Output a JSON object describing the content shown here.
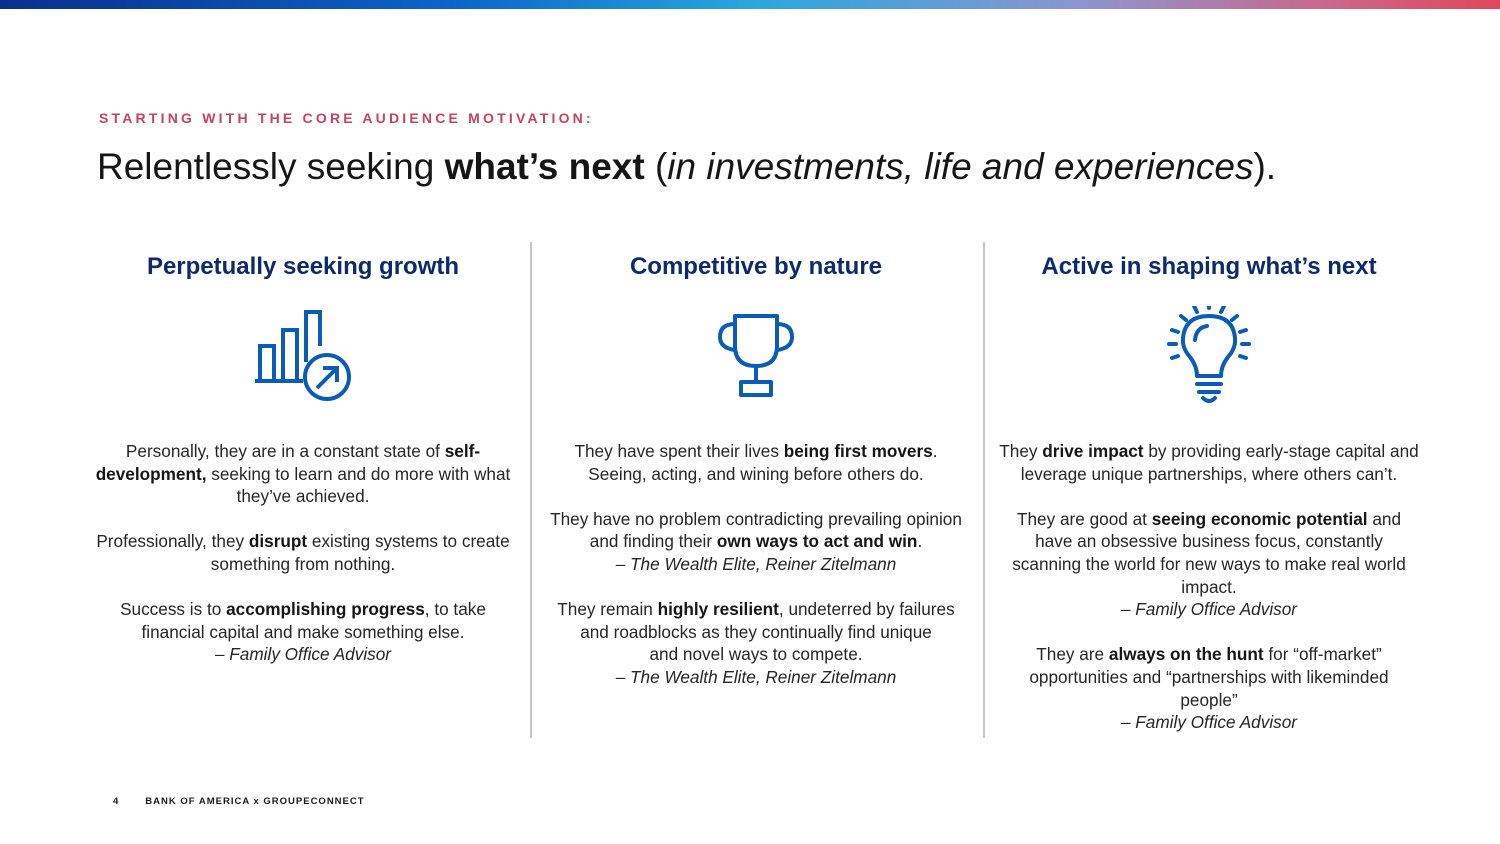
{
  "brand_colors": {
    "accent": "#c4435f",
    "navy": "#0e2a6b",
    "icon": "#0b5cb5"
  },
  "eyebrow": "STARTING WITH THE CORE AUDIENCE MOTIVATION:",
  "headline": {
    "lead": "Relentlessly seeking ",
    "bold": "what’s next",
    "open": " (",
    "italic": "in investments, life and experiences",
    "close": ")."
  },
  "columns": [
    {
      "title": "Perpetually seeking growth",
      "icon": "growth-chart-icon",
      "paragraphs": [
        [
          {
            "t": "Personally, they are in a constant state of "
          },
          {
            "t": "self-development,",
            "b": true
          },
          {
            "t": " seeking to learn and do more with what they’ve achieved."
          }
        ],
        [
          {
            "t": "Professionally, they "
          },
          {
            "t": "disrupt",
            "b": true
          },
          {
            "t": " existing systems to create something from nothing."
          }
        ],
        [
          {
            "t": "Success is to "
          },
          {
            "t": "accomplishing progress",
            "b": true
          },
          {
            "t": ", to take financial capital and make something else."
          },
          {
            "br": true
          },
          {
            "t": "– Family Office Advisor",
            "i": true
          }
        ]
      ]
    },
    {
      "title": "Competitive by nature",
      "icon": "trophy-icon",
      "paragraphs": [
        [
          {
            "t": "They have spent their lives "
          },
          {
            "t": "being first movers",
            "b": true
          },
          {
            "t": ".  Seeing, acting, and wining before others do."
          }
        ],
        [
          {
            "t": "They have no problem contradicting prevailing opinion and finding their "
          },
          {
            "t": "own ways to act and win",
            "b": true
          },
          {
            "t": "."
          },
          {
            "br": true
          },
          {
            "t": "– The Wealth Elite, Reiner Zitelmann",
            "i": true
          }
        ],
        [
          {
            "t": "They remain "
          },
          {
            "t": "highly resilient",
            "b": true
          },
          {
            "t": ", undeterred by failures and roadblocks as they continually find unique"
          },
          {
            "br": true
          },
          {
            "t": "and novel ways to compete."
          },
          {
            "br": true
          },
          {
            "t": "– The Wealth Elite, Reiner Zitelmann",
            "i": true
          }
        ]
      ]
    },
    {
      "title": "Active in shaping what’s next",
      "icon": "lightbulb-icon",
      "paragraphs": [
        [
          {
            "t": "They "
          },
          {
            "t": "drive impact",
            "b": true
          },
          {
            "t": " by providing early-stage capital and leverage unique partnerships, where others can’t."
          }
        ],
        [
          {
            "t": "They are good at "
          },
          {
            "t": "seeing economic potential",
            "b": true
          },
          {
            "t": " and have an obsessive business focus, constantly scanning the world for new ways to make real world impact."
          },
          {
            "br": true
          },
          {
            "t": "– Family Office Advisor",
            "i": true
          }
        ],
        [
          {
            "t": "They are "
          },
          {
            "t": "always on the hunt",
            "b": true
          },
          {
            "t": " for “off-market” opportunities and “partnerships with likeminded people”"
          },
          {
            "br": true
          },
          {
            "t": "– Family Office Advisor",
            "i": true
          }
        ]
      ]
    }
  ],
  "footer": {
    "page_number": "4",
    "brand": "BANK OF AMERICA x GROUPECONNECT"
  }
}
